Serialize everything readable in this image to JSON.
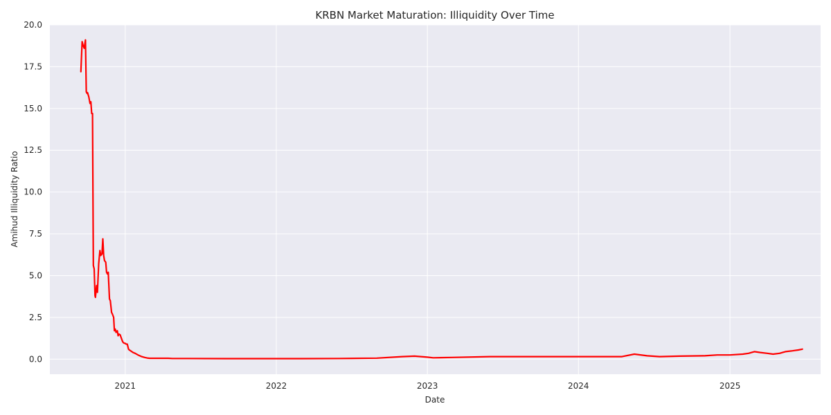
{
  "chart_data": {
    "type": "line",
    "title": "KRBN Market Maturation: Illiquidity Over Time",
    "xlabel": "Date",
    "ylabel": "Amihud Illiquidity Ratio",
    "ylim": [
      -0.9,
      20.0
    ],
    "xlim": [
      "2020-07-03",
      "2025-08-08"
    ],
    "grid": true,
    "legend": "none",
    "y_ticks": [
      "0.0",
      "2.5",
      "5.0",
      "7.5",
      "10.0",
      "12.5",
      "15.0",
      "17.5",
      "20.0"
    ],
    "x_ticks": [
      {
        "label": "2021",
        "date": "2021-01-01"
      },
      {
        "label": "2022",
        "date": "2022-01-01"
      },
      {
        "label": "2023",
        "date": "2023-01-01"
      },
      {
        "label": "2024",
        "date": "2024-01-01"
      },
      {
        "label": "2025",
        "date": "2025-01-01"
      }
    ],
    "colors": {
      "line": "#ff0000",
      "background": "#eaeaf2",
      "grid": "#ffffff",
      "text": "#262626"
    },
    "series": [
      {
        "x": [
          "2020-09-16",
          "2020-09-19",
          "2020-09-21",
          "2020-09-24",
          "2020-09-27",
          "2020-09-29",
          "2020-10-01",
          "2020-10-02",
          "2020-10-05",
          "2020-10-08",
          "2020-10-10",
          "2020-10-12",
          "2020-10-14",
          "2020-10-16",
          "2020-10-18",
          "2020-10-20",
          "2020-10-21",
          "2020-10-24",
          "2020-10-26",
          "2020-10-29",
          "2020-11-01",
          "2020-11-03",
          "2020-11-06",
          "2020-11-08",
          "2020-11-10",
          "2020-11-12",
          "2020-11-15",
          "2020-11-17",
          "2020-11-19",
          "2020-11-21",
          "2020-11-24",
          "2020-11-26",
          "2020-11-29",
          "2020-12-01",
          "2020-12-04",
          "2020-12-06",
          "2020-12-08",
          "2020-12-10",
          "2020-12-13",
          "2020-12-15",
          "2020-12-17",
          "2020-12-20",
          "2020-12-22",
          "2020-12-25",
          "2020-12-27",
          "2020-12-30",
          "2021-01-01",
          "2021-01-03",
          "2021-01-06",
          "2021-01-09",
          "2021-01-11",
          "2021-01-14",
          "2021-01-17",
          "2021-01-20",
          "2021-01-25",
          "2021-02-01",
          "2021-02-10",
          "2021-02-17",
          "2021-02-23",
          "2021-03-01",
          "2021-03-06",
          "2021-03-15",
          "2021-03-25",
          "2021-04-05",
          "2021-04-15",
          "2021-04-25",
          "2021-05-10",
          "2021-06-01",
          "2021-09-01",
          "2021-12-01",
          "2022-03-01",
          "2022-06-01",
          "2022-09-01",
          "2022-11-01",
          "2022-12-01",
          "2023-01-01",
          "2023-01-15",
          "2023-03-01",
          "2023-06-01",
          "2023-09-01",
          "2023-12-01",
          "2024-03-01",
          "2024-04-15",
          "2024-05-15",
          "2024-06-15",
          "2024-07-15",
          "2024-09-01",
          "2024-11-01",
          "2024-12-01",
          "2025-01-01",
          "2025-02-01",
          "2025-02-15",
          "2025-03-01",
          "2025-03-15",
          "2025-04-01",
          "2025-04-15",
          "2025-05-01",
          "2025-05-15",
          "2025-06-01",
          "2025-06-15",
          "2025-06-25"
        ],
        "y": [
          17.2,
          19.0,
          18.8,
          18.6,
          19.1,
          16.0,
          15.9,
          15.95,
          15.7,
          15.3,
          15.4,
          14.7,
          14.7,
          5.6,
          5.4,
          3.8,
          3.7,
          4.4,
          4.0,
          5.7,
          6.5,
          6.2,
          6.3,
          7.2,
          6.2,
          5.9,
          5.8,
          5.2,
          5.1,
          5.2,
          3.6,
          3.5,
          2.8,
          2.7,
          2.5,
          1.7,
          1.8,
          1.6,
          1.7,
          1.4,
          1.5,
          1.45,
          1.3,
          1.1,
          1.0,
          0.95,
          0.95,
          0.9,
          0.9,
          0.6,
          0.55,
          0.5,
          0.45,
          0.4,
          0.35,
          0.25,
          0.15,
          0.1,
          0.07,
          0.05,
          0.05,
          0.05,
          0.05,
          0.05,
          0.05,
          0.04,
          0.04,
          0.04,
          0.03,
          0.03,
          0.03,
          0.04,
          0.06,
          0.15,
          0.18,
          0.12,
          0.08,
          0.1,
          0.15,
          0.15,
          0.15,
          0.15,
          0.15,
          0.3,
          0.2,
          0.15,
          0.18,
          0.2,
          0.25,
          0.25,
          0.3,
          0.35,
          0.45,
          0.4,
          0.35,
          0.3,
          0.35,
          0.45,
          0.5,
          0.55,
          0.6
        ]
      }
    ]
  }
}
